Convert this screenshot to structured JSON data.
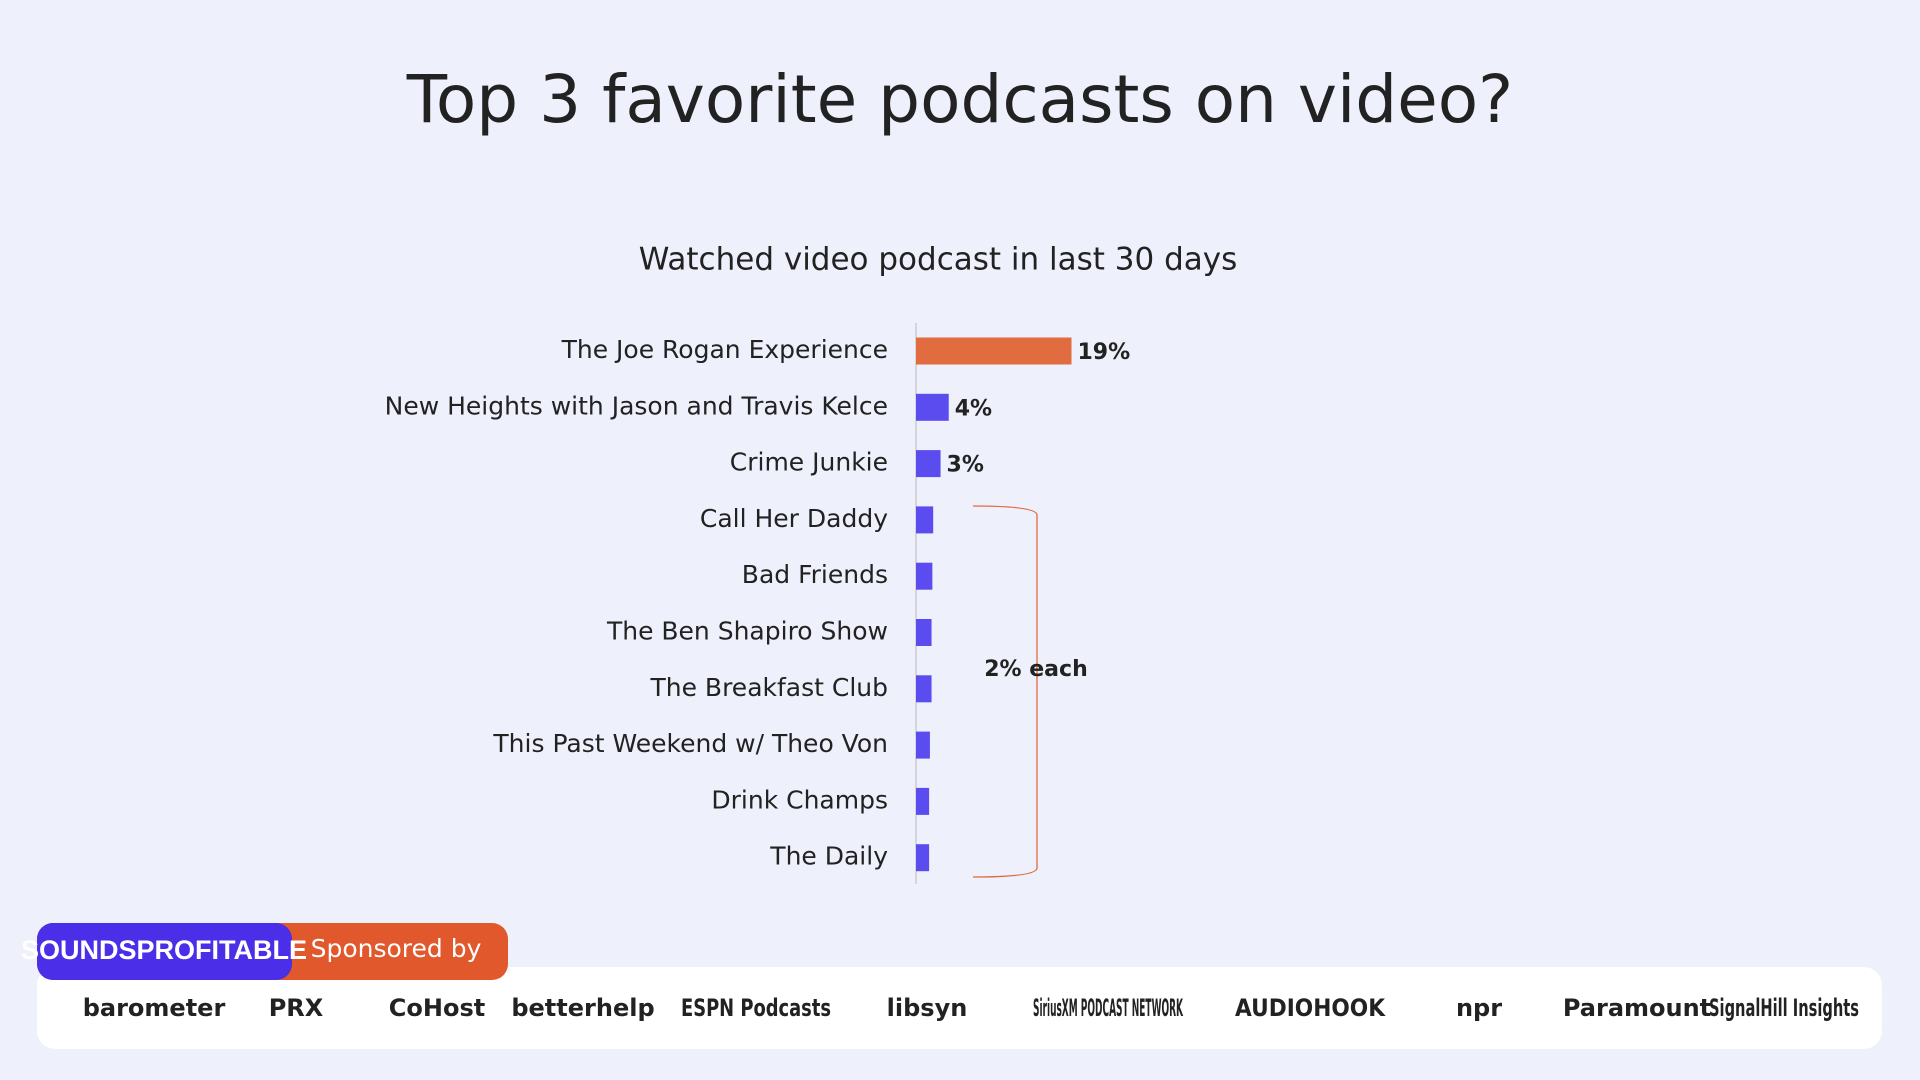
{
  "chart_data": {
    "type": "hbar",
    "title": "Top 3 favorite podcasts on video?",
    "subtitle": "Watched video podcast in last 30 days",
    "categories": [
      "The Joe Rogan Experience",
      "New Heights with Jason and Travis Kelce",
      "Crime Junkie",
      "Call Her Daddy",
      "Bad Friends",
      "The Ben Shapiro Show",
      "The Breakfast Club",
      "This Past Weekend w/ Theo Von",
      "Drink Champs",
      "The Daily"
    ],
    "values": [
      19,
      4,
      3,
      2.1,
      2.0,
      1.9,
      1.9,
      1.7,
      1.6,
      1.6
    ],
    "value_labels": [
      "19%",
      "4%",
      "3%",
      null,
      null,
      null,
      null,
      null,
      null,
      null
    ],
    "colors": [
      "#e06c3f",
      "#5b4cf0",
      "#5b4cf0",
      "#5b4cf0",
      "#5b4cf0",
      "#5b4cf0",
      "#5b4cf0",
      "#5b4cf0",
      "#5b4cf0",
      "#5b4cf0"
    ],
    "xlim": [
      0,
      25
    ],
    "annotation": "2% each"
  },
  "footer": {
    "brand": "SOUNDSPROFITABLE",
    "sponsored_by": "Sponsored by",
    "sponsors": [
      "barometer",
      "PRX",
      "CoHost",
      "betterhelp",
      "ESPN Podcasts",
      "libsyn",
      "SiriusXM PODCAST NETWORK",
      "AUDIOHOOK",
      "npr",
      "Paramount",
      "SignalHill Insights"
    ]
  }
}
